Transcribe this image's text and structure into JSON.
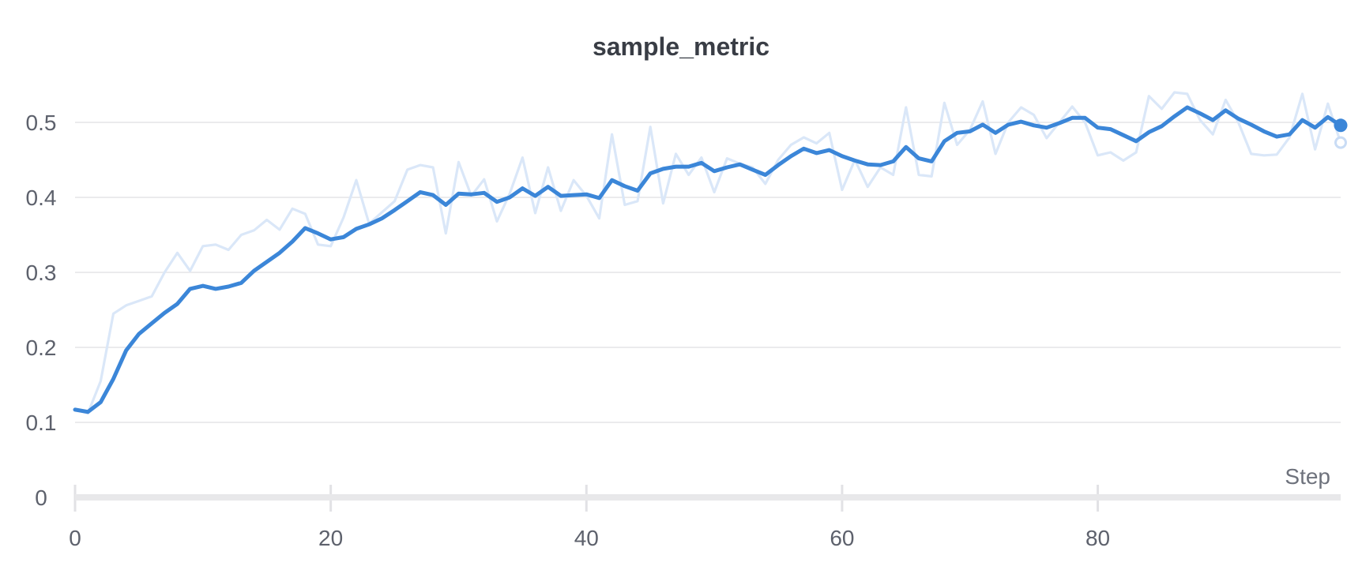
{
  "title": "sample_metric",
  "axis": {
    "x_label": "Step",
    "x_ticks": [
      {
        "label": "0",
        "value": 0
      },
      {
        "label": "20",
        "value": 20
      },
      {
        "label": "40",
        "value": 40
      },
      {
        "label": "60",
        "value": 60
      },
      {
        "label": "80",
        "value": 80
      }
    ],
    "y_ticks": [
      {
        "label": "0",
        "value": 0
      },
      {
        "label": "0.1",
        "value": 0.1
      },
      {
        "label": "0.2",
        "value": 0.2
      },
      {
        "label": "0.3",
        "value": 0.3
      },
      {
        "label": "0.4",
        "value": 0.4
      },
      {
        "label": "0.5",
        "value": 0.5
      }
    ]
  },
  "colors": {
    "background": "#ffffff",
    "smoothed_line": "#3b86d8",
    "raw_line": "#dae7f8",
    "grid_line": "#ebebed",
    "axis_bar": "#e8e8ea",
    "axis_tick": "#e2e2e5",
    "tick_label": "#5d616c",
    "axis_label": "#6e727c",
    "title": "#393d45",
    "raw_endpoint_ring": "#c9dcf5",
    "raw_endpoint_fill": "#ffffff"
  },
  "chart_data": {
    "type": "line",
    "title": "sample_metric",
    "xlabel": "Step",
    "ylabel": "",
    "x_range": [
      0,
      99
    ],
    "ylim": [
      0,
      0.56
    ],
    "grid": "horizontal-only",
    "legend": "none",
    "x": [
      0,
      1,
      2,
      3,
      4,
      5,
      6,
      7,
      8,
      9,
      10,
      11,
      12,
      13,
      14,
      15,
      16,
      17,
      18,
      19,
      20,
      21,
      22,
      23,
      24,
      25,
      26,
      27,
      28,
      29,
      30,
      31,
      32,
      33,
      34,
      35,
      36,
      37,
      38,
      39,
      40,
      41,
      42,
      43,
      44,
      45,
      46,
      47,
      48,
      49,
      50,
      51,
      52,
      53,
      54,
      55,
      56,
      57,
      58,
      59,
      60,
      61,
      62,
      63,
      64,
      65,
      66,
      67,
      68,
      69,
      70,
      71,
      72,
      73,
      74,
      75,
      76,
      77,
      78,
      79,
      80,
      81,
      82,
      83,
      84,
      85,
      86,
      87,
      88,
      89,
      90,
      91,
      92,
      93,
      94,
      95,
      96,
      97,
      98,
      99
    ],
    "series": [
      {
        "name": "sample_metric (raw)",
        "role": "unsmoothed",
        "color": "#dae7f8",
        "stroke_width": 3.2,
        "values": [
          0.117,
          0.112,
          0.155,
          0.245,
          0.256,
          0.262,
          0.268,
          0.3,
          0.326,
          0.302,
          0.335,
          0.337,
          0.33,
          0.35,
          0.356,
          0.37,
          0.357,
          0.385,
          0.378,
          0.337,
          0.335,
          0.373,
          0.423,
          0.365,
          0.38,
          0.395,
          0.437,
          0.443,
          0.44,
          0.352,
          0.447,
          0.402,
          0.424,
          0.368,
          0.405,
          0.453,
          0.379,
          0.44,
          0.382,
          0.423,
          0.402,
          0.372,
          0.484,
          0.39,
          0.395,
          0.494,
          0.392,
          0.458,
          0.43,
          0.453,
          0.407,
          0.452,
          0.445,
          0.44,
          0.418,
          0.45,
          0.47,
          0.48,
          0.472,
          0.486,
          0.41,
          0.45,
          0.414,
          0.44,
          0.43,
          0.52,
          0.43,
          0.428,
          0.526,
          0.47,
          0.49,
          0.528,
          0.458,
          0.5,
          0.52,
          0.51,
          0.479,
          0.5,
          0.521,
          0.5,
          0.456,
          0.46,
          0.449,
          0.46,
          0.535,
          0.518,
          0.54,
          0.538,
          0.503,
          0.484,
          0.53,
          0.5,
          0.458,
          0.456,
          0.457,
          0.48,
          0.538,
          0.464,
          0.525,
          0.473
        ]
      },
      {
        "name": "sample_metric (smoothed)",
        "role": "smoothed",
        "color": "#3b86d8",
        "stroke_width": 5,
        "values": [
          0.117,
          0.114,
          0.127,
          0.158,
          0.196,
          0.218,
          0.232,
          0.246,
          0.258,
          0.278,
          0.282,
          0.278,
          0.281,
          0.286,
          0.302,
          0.314,
          0.326,
          0.341,
          0.359,
          0.352,
          0.344,
          0.347,
          0.358,
          0.364,
          0.372,
          0.383,
          0.395,
          0.407,
          0.403,
          0.39,
          0.405,
          0.404,
          0.406,
          0.394,
          0.4,
          0.412,
          0.402,
          0.414,
          0.402,
          0.403,
          0.404,
          0.399,
          0.423,
          0.415,
          0.409,
          0.432,
          0.438,
          0.441,
          0.441,
          0.446,
          0.435,
          0.44,
          0.444,
          0.437,
          0.43,
          0.443,
          0.455,
          0.465,
          0.459,
          0.463,
          0.455,
          0.449,
          0.444,
          0.443,
          0.448,
          0.467,
          0.452,
          0.448,
          0.475,
          0.486,
          0.488,
          0.497,
          0.486,
          0.497,
          0.501,
          0.496,
          0.493,
          0.499,
          0.506,
          0.506,
          0.493,
          0.491,
          0.483,
          0.475,
          0.487,
          0.495,
          0.508,
          0.52,
          0.512,
          0.503,
          0.516,
          0.505,
          0.497,
          0.488,
          0.481,
          0.484,
          0.503,
          0.493,
          0.507,
          0.496
        ]
      }
    ],
    "endpoint_markers": {
      "smoothed_last_value": 0.496,
      "raw_last_value": 0.473
    }
  }
}
